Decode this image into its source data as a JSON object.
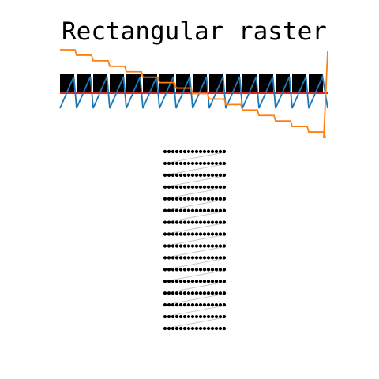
{
  "title": "Rectangular raster",
  "colors": {
    "background": "#ffffff",
    "gate": "#000000",
    "fast_axis": "#1f77b4",
    "slow_axis": "#ff7f0e",
    "baseline": "#d62728",
    "scan_dots": "#000000",
    "scan_path": "#c8c8c8"
  },
  "raster": {
    "lines": 16,
    "points_per_line": 16
  }
}
